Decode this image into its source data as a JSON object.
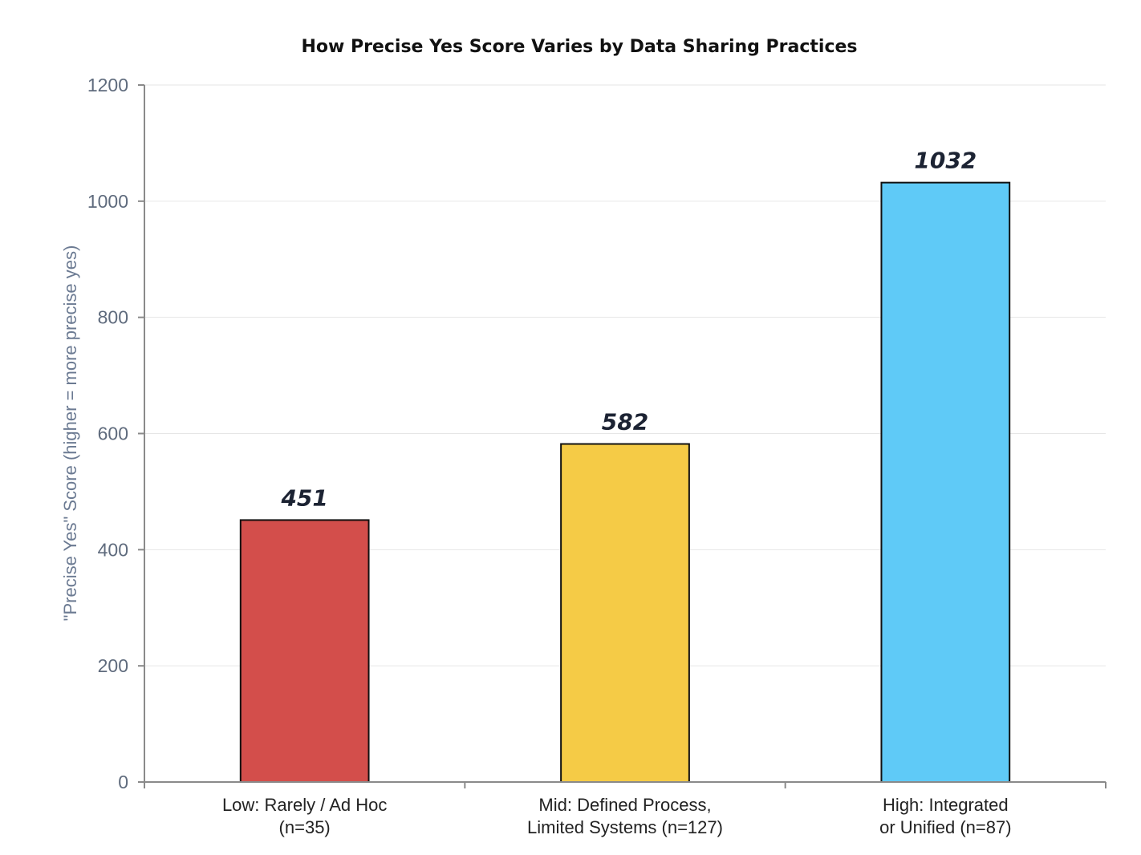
{
  "chart_data": {
    "type": "bar",
    "title": "How Precise Yes Score Varies by Data Sharing Practices",
    "xlabel": "",
    "ylabel": "\"Precise Yes\" Score (higher = more precise yes)",
    "categories": [
      [
        "Low: Rarely / Ad Hoc",
        "(n=35)"
      ],
      [
        "Mid: Defined Process,",
        "Limited Systems (n=127)"
      ],
      [
        "High: Integrated",
        "or Unified (n=87)"
      ]
    ],
    "values": [
      451,
      582,
      1032
    ],
    "value_labels": [
      "451",
      "582",
      "1032"
    ],
    "colors": [
      "#d34e4b",
      "#f5cb46",
      "#5fcaf7"
    ],
    "ylim": [
      0,
      1200
    ],
    "yticks": [
      0,
      200,
      400,
      600,
      800,
      1000,
      1200
    ],
    "grid": true,
    "legend": "none"
  }
}
